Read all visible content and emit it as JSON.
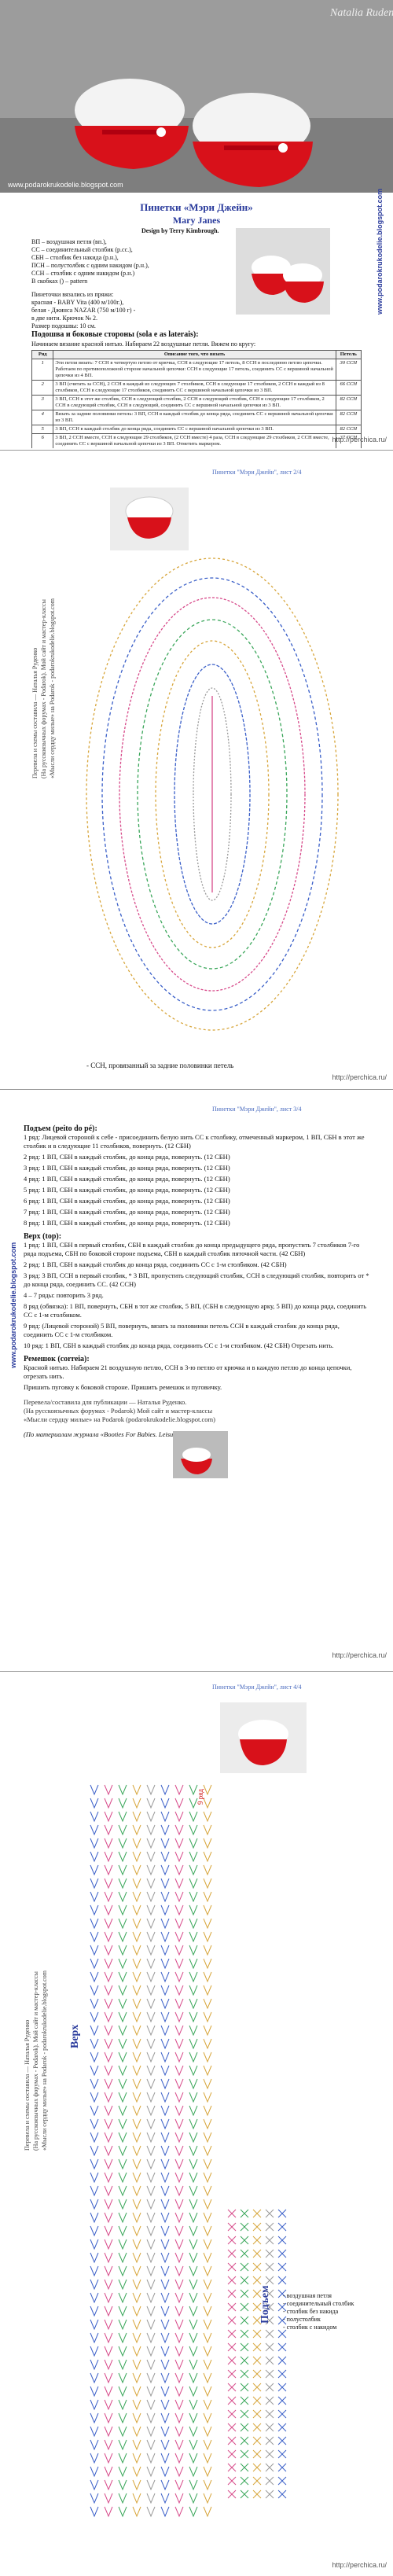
{
  "header": {
    "watermark": "Natalia Rudenko",
    "photo_caption": "www.podarokrukodelie.blogspot.com"
  },
  "page1": {
    "title": "Пинетки «Мэри Джейн»",
    "subtitle": "Mary Janes",
    "design": "Design by Terry Kimbrough.",
    "legend": [
      "ВП – воздушная петля (вп.),",
      "СС – соединительный столбик (р.сс.),",
      "СБН – столбик без накида (р.н.),",
      "ПСН – полустолбик с одним накидом (р.н.),",
      "ССН – столбик с одним накидом (р.н.)",
      "В скобках () – pattern"
    ],
    "yarn": [
      "Пинеточки вязались из пряжи:",
      "красная - BABY Vita (400 м/100г.),",
      "белая - Джинса NAZAR (750 м/100 г) -",
      "в две нити.  Крючок № 2.",
      "Размер подошвы: 10 см."
    ],
    "side_url": "www.podarokrukodelie.blogspot.com",
    "section": "Подошва и боковые стороны (sola e as laterais):",
    "intro": "Начинаем вязание красной нитью. Набираем 22 воздушные петли. Вяжем по кругу:",
    "table": {
      "headers": [
        "Ряд",
        "Описание того, что вязать",
        "Петель"
      ],
      "rows": [
        [
          "1",
          "Эти петли вязать: 7 ССН в четвертую петлю от крючка, ССН в следующие 17 петель, 8 ССН в последнюю петлю цепочки. Работаем по противоположной стороне начальной цепочки: ССН в следующие 17 петель, соединить СС с вершиной начальной цепочки из 4 ВП.",
          "30 ССН"
        ],
        [
          "2",
          "3 ВП (считать за ССН), 2 ССН в каждый из следующих 7 столбиков, ССН в следующие 17 столбиков, 2 ССН в каждый из 8 столбиков, ССН в следующие 17 столбиков, соединить СС с вершиной начальной цепочки из 3 ВП.",
          "66 ССН"
        ],
        [
          "3",
          "3 ВП, ССН в этот же столбик, ССН в следующий столбик, 2 ССН в следующий столбик, ССН в следующие 17 столбиков, 2 ССН в следующий столбик, ССН в следующий, соединить СС с вершиной начальной цепочки из 3 ВП.",
          "82 ССН"
        ],
        [
          "4",
          "Вязать за задние половинки петель: 3 ВП, ССН в каждый столбик до конца ряда, соединить СС с вершиной начальной цепочки из 3 ВП.",
          "82 ССН"
        ],
        [
          "5",
          "3 ВП, ССН в каждый столбик до конца ряда, соединить СС с вершиной начальной цепочки из 3 ВП.",
          "82 ССН"
        ],
        [
          "6",
          "3 ВП, 2 ССН вместе, ССН в следующие 29 столбиков, (2 ССН вместе) 4 раза, ССН в следующие 29 столбиков, 2 ССН вместе, соединить СС с вершиной начальной цепочки из 3 ВП. Отметить маркером.",
          "37 ССН"
        ],
        [
          "Обвязка",
          "3 ВП, повернуть. Вяжем за задние полупетли: 1 ВП, СБН в каждый столбик до конца ряда, (СС, 3 ВП, 2 ССН в следующий столбик), соединить СС.",
          "19 петель"
        ]
      ]
    },
    "footer": "http://perchica.ru/"
  },
  "page2": {
    "caption": "Пинетки \"Мэри Джейн\", лист 2/4",
    "side_text": [
      "Перевела и схемы составила — Наталья Руденко",
      "(На русскоязычных форумах - Podarok). Мой сайт и мастер-классы",
      "«Мысли сердцу милые» на Podarok - podarokrukodelie.blogspot.com"
    ],
    "legend": "- ССН, провязанный за задние половинки петель",
    "footer": "http://perchica.ru/"
  },
  "page3": {
    "caption": "Пинетки \"Мэри Джейн\", лист 3/4",
    "side_url": "www.podarokrukodelie.blogspot.com",
    "lift_title": "Подъем (peito do pé):",
    "lift": [
      "1 ряд: Лицевой стороной к себе - присоединить белую нить СС к столбику, отмеченный маркером, 1 ВП, СБН в этот же столбик и в следующие 11 столбиков, повернуть. (12 СБН)",
      "2 ряд: 1 ВП, СБН в каждый столбик, до конца ряда, повернуть. (12 СБН)",
      "3 ряд: 1 ВП, СБН в каждый столбик, до конца ряда, повернуть. (12 СБН)",
      "4 ряд: 1 ВП, СБН в каждый столбик, до конца ряда, повернуть. (12 СБН)",
      "5 ряд: 1 ВП, СБН в каждый столбик, до конца ряда, повернуть. (12 СБН)",
      "6 ряд: 1 ВП, СБН в каждый столбик, до конца ряда, повернуть. (12 СБН)",
      "7 ряд: 1 ВП, СБН в каждый столбик, до конца ряда, повернуть. (12 СБН)",
      "8 ряд: 1 ВП, СБН в каждый столбик, до конца ряда, повернуть. (12 СБН)"
    ],
    "top_title": "Верх (top):",
    "top": [
      "1 ряд: 1 ВП, СБН в первый столбик, СБН в каждый столбик до конца предыдущего ряда, пропустить 7 столбиков 7-го ряда подъема, СБН по боковой стороне подъема, СБН в каждый столбик пяточной части. (42 СБН)",
      "2 ряд: 1 ВП, СБН в каждый столбик до конца ряда, соединить СС с 1-м столбиком. (42 СБН)",
      "3 ряд: 3 ВП, ССН в первый столбик, * 3 ВП, пропустить следующий столбик, ССН в следующий столбик, повторить от * до конца ряда, соединить СС. (42 ССН)",
      "4 – 7 ряды: повторить 3 ряд.",
      "8 ряд (обвязка): 1 ВП, повернуть, СБН в тот же столбик, 5 ВП, (СБН в следующую арку, 5 ВП) до конца ряда, соединить СС с 1-м столбиком.",
      "9 ряд: (Лицевой стороной) 5 ВП, повернуть, вязать за половинки петель ССН в каждый столбик до конца ряда, соединить СС с 1-м столбиком.",
      "10 ряд: 1 ВП, СБН в каждый столбик до конца ряда, соединить СС с 1-м столбиком. (42 СБН) Отрезать нить."
    ],
    "strap_title": "Ремешок (correia):",
    "strap": [
      "Красной нитью. Набираем 21 воздушную петлю, ССН в 3-ю петлю от крючка и в каждую петлю до конца цепочки, отрезать нить.",
      "Пришить пуговку к боковой стороне. Пришить ремешок и пуговичку."
    ],
    "credits": [
      "Перевела/составила для публикации — Наталья Руденко.",
      "(На русскоязычных форумах - Podarok) Мой сайт и мастер-классы",
      "«Мысли сердцу милые» на Podarok (podarokrukodelie.blogspot.com)"
    ],
    "source": "(По материалам журнала «Booties For Babies. Leisure Arts»)",
    "footer": "http://perchica.ru/"
  },
  "page4": {
    "caption": "Пинетки \"Мэри Джейн\", лист 4/4",
    "top_label": "Верх",
    "lift_label": "Подъем",
    "rows_label": "9 ряд",
    "side_text": [
      "Перевела и схемы составила — Наталья Руденко",
      "(На русскоязычных форумах - Podarok). Мой сайт и мастер-классы",
      "«Мысли сердцу милые» на Podarok - podarokrukodelie.blogspot.com"
    ],
    "legend": [
      "- воздушная петля",
      "- соединительный столбик",
      "- столбик без накида",
      "- полустолбик",
      "- столбик с накидом"
    ],
    "footer": "http://perchica.ru/"
  }
}
